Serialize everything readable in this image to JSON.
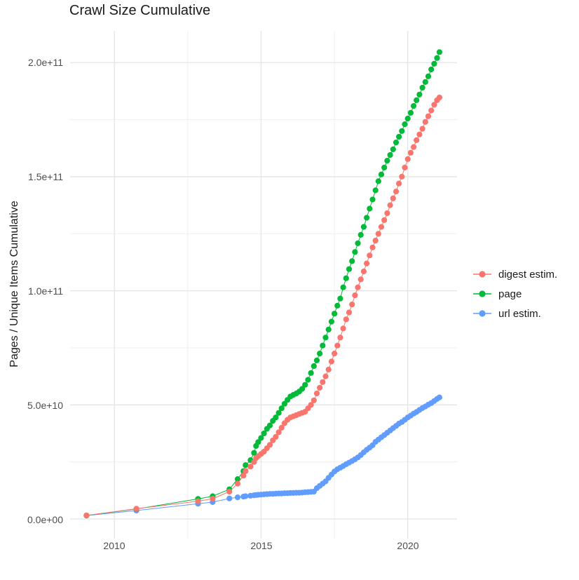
{
  "title": "Crawl Size Cumulative",
  "chart_data": {
    "type": "scatter",
    "title": "Crawl Size Cumulative",
    "xlabel": "",
    "ylabel": "Pages / Unique Items Cumulative",
    "y_unit": "items, values given in billions (1e9); e.g. 204.6 = 2.046e+11",
    "grid": true,
    "legend_position": "right",
    "xlim": [
      2008.49,
      2021.68
    ],
    "ylim_e9": [
      -8.6,
      213.9
    ],
    "x_ticks": [
      {
        "year": 2010,
        "label": "2010"
      },
      {
        "year": 2015,
        "label": "2015"
      },
      {
        "year": 2020,
        "label": "2020"
      }
    ],
    "x_minor_ticks": [
      2012.5,
      2017.5
    ],
    "y_ticks": [
      {
        "value_e9": 0,
        "label": "0.0e+00"
      },
      {
        "value_e9": 50,
        "label": "5.0e+10"
      },
      {
        "value_e9": 100,
        "label": "1.0e+11"
      },
      {
        "value_e9": 150,
        "label": "1.5e+11"
      },
      {
        "value_e9": 200,
        "label": "2.0e+11"
      }
    ],
    "y_minor_ticks_e9": [
      25,
      75,
      125,
      175
    ],
    "x": [
      2009.05,
      2010.75,
      2012.85,
      2013.35,
      2013.92,
      2014.2,
      2014.4,
      2014.47,
      2014.64,
      2014.76,
      2014.83,
      2014.9,
      2015.0,
      2015.1,
      2015.2,
      2015.3,
      2015.4,
      2015.5,
      2015.6,
      2015.7,
      2015.8,
      2015.9,
      2016.0,
      2016.1,
      2016.2,
      2016.3,
      2016.4,
      2016.5,
      2016.6,
      2016.7,
      2016.8,
      2016.9,
      2017.0,
      2017.1,
      2017.2,
      2017.3,
      2017.4,
      2017.5,
      2017.6,
      2017.7,
      2017.8,
      2017.9,
      2018.0,
      2018.1,
      2018.2,
      2018.3,
      2018.4,
      2018.5,
      2018.6,
      2018.7,
      2018.8,
      2018.9,
      2019.0,
      2019.1,
      2019.2,
      2019.3,
      2019.4,
      2019.5,
      2019.6,
      2019.7,
      2019.8,
      2019.9,
      2020.0,
      2020.1,
      2020.2,
      2020.3,
      2020.4,
      2020.5,
      2020.6,
      2020.7,
      2020.8,
      2020.9,
      2021.0,
      2021.08
    ],
    "series": [
      {
        "name": "digest estim.",
        "color": "#F8766D",
        "values_e9": [
          1.6,
          4.5,
          7.8,
          8.9,
          12.0,
          15.5,
          19.0,
          21.0,
          23.0,
          25.0,
          26.7,
          27.5,
          28.5,
          29.5,
          31.0,
          32.5,
          34.5,
          36.0,
          38.0,
          40.0,
          42.0,
          43.5,
          44.5,
          45.0,
          45.5,
          46.0,
          46.5,
          47.0,
          48.5,
          50.0,
          52.0,
          55.0,
          57.5,
          60.0,
          62.5,
          65.5,
          69.0,
          72.5,
          76.0,
          79.5,
          83.5,
          87.5,
          90.5,
          94.0,
          98.0,
          101.5,
          105.0,
          108.5,
          112.0,
          115.5,
          119.0,
          122.0,
          125.0,
          128.0,
          131.0,
          134.0,
          137.5,
          140.5,
          143.5,
          147.0,
          150.0,
          154.0,
          157.7,
          160.5,
          163.0,
          166.0,
          168.5,
          171.0,
          174.0,
          176.5,
          179.0,
          181.5,
          183.5,
          184.7
        ]
      },
      {
        "name": "page",
        "color": "#00BA38",
        "values_e9": [
          1.5,
          4.4,
          8.8,
          10.0,
          13.0,
          17.5,
          21.0,
          23.6,
          25.8,
          29.0,
          32.0,
          33.7,
          35.5,
          37.5,
          39.5,
          41.0,
          43.0,
          44.5,
          46.5,
          48.5,
          50.5,
          52.2,
          53.7,
          54.4,
          55.0,
          55.8,
          57.0,
          58.8,
          61.0,
          64.0,
          67.0,
          69.5,
          72.5,
          76.0,
          79.5,
          83.0,
          86.5,
          90.0,
          93.5,
          96.6,
          101.5,
          105.5,
          109.5,
          113.0,
          117.0,
          120.8,
          124.5,
          128.0,
          132.0,
          136.0,
          140.0,
          144.0,
          148.0,
          151.0,
          154.0,
          157.0,
          159.5,
          162.0,
          165.0,
          167.5,
          170.0,
          173.0,
          175.5,
          178.0,
          181.0,
          183.5,
          186.0,
          189.0,
          191.5,
          194.0,
          197.0,
          199.5,
          202.0,
          204.6
        ]
      },
      {
        "name": "url estim.",
        "color": "#619CFF",
        "values_e9": [
          1.5,
          3.7,
          6.7,
          7.4,
          9.0,
          9.5,
          9.8,
          10.0,
          10.2,
          10.4,
          10.5,
          10.6,
          10.7,
          10.8,
          10.9,
          11.0,
          11.0,
          11.1,
          11.2,
          11.2,
          11.3,
          11.3,
          11.4,
          11.4,
          11.5,
          11.5,
          11.6,
          11.7,
          11.8,
          11.9,
          12.0,
          13.5,
          14.5,
          15.5,
          16.5,
          18.0,
          19.5,
          20.8,
          21.8,
          22.5,
          23.2,
          24.0,
          24.7,
          25.4,
          26.2,
          27.0,
          28.0,
          29.2,
          30.3,
          31.3,
          32.3,
          33.8,
          34.8,
          35.8,
          36.8,
          37.8,
          38.8,
          39.8,
          40.8,
          41.8,
          42.5,
          43.5,
          44.5,
          45.3,
          46.2,
          46.9,
          47.8,
          48.6,
          49.3,
          50.1,
          50.8,
          51.7,
          52.6,
          53.3
        ]
      }
    ],
    "style": {
      "background": "#ffffff",
      "grid_major_color": "#e4e4e4",
      "grid_minor_color": "#efefef",
      "point_radius": 4.1,
      "line_width": 1,
      "text_color": "#4d4d4d",
      "title_color": "#1a1a1a"
    }
  }
}
